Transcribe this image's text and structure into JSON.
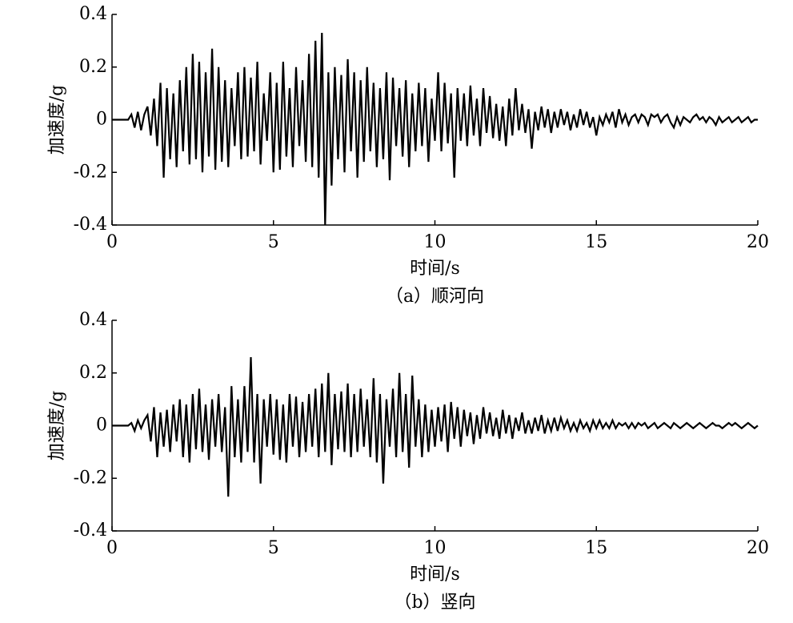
{
  "chart_data": [
    {
      "type": "line",
      "caption": "（a）顺河向",
      "xlabel": "时间/s",
      "ylabel": "加速度/g",
      "color": "#000000",
      "xlim": [
        0,
        20
      ],
      "xticks": [
        0,
        5,
        10,
        15,
        20
      ],
      "ylim": [
        -0.4,
        0.4
      ],
      "yticks": [
        0.4,
        0.2,
        0,
        -0.2,
        -0.4
      ],
      "x": [
        0,
        0.1,
        0.2,
        0.3,
        0.4,
        0.5,
        0.6,
        0.7,
        0.8,
        0.9,
        1,
        1.1,
        1.2,
        1.3,
        1.4,
        1.5,
        1.6,
        1.7,
        1.8,
        1.9,
        2,
        2.1,
        2.2,
        2.3,
        2.4,
        2.5,
        2.6,
        2.7,
        2.8,
        2.9,
        3,
        3.1,
        3.2,
        3.3,
        3.4,
        3.5,
        3.6,
        3.7,
        3.8,
        3.9,
        4,
        4.1,
        4.2,
        4.3,
        4.4,
        4.5,
        4.6,
        4.7,
        4.8,
        4.9,
        5,
        5.1,
        5.2,
        5.3,
        5.4,
        5.5,
        5.6,
        5.7,
        5.8,
        5.9,
        6,
        6.1,
        6.2,
        6.3,
        6.4,
        6.5,
        6.6,
        6.7,
        6.8,
        6.9,
        7,
        7.1,
        7.2,
        7.3,
        7.4,
        7.5,
        7.6,
        7.7,
        7.8,
        7.9,
        8,
        8.1,
        8.2,
        8.3,
        8.4,
        8.5,
        8.6,
        8.7,
        8.8,
        8.9,
        9,
        9.1,
        9.2,
        9.3,
        9.4,
        9.5,
        9.6,
        9.7,
        9.8,
        9.9,
        10,
        10.1,
        10.2,
        10.3,
        10.4,
        10.5,
        10.6,
        10.7,
        10.8,
        10.9,
        11,
        11.1,
        11.2,
        11.3,
        11.4,
        11.5,
        11.6,
        11.7,
        11.8,
        11.9,
        12,
        12.1,
        12.2,
        12.3,
        12.4,
        12.5,
        12.6,
        12.7,
        12.8,
        12.9,
        13,
        13.1,
        13.2,
        13.3,
        13.4,
        13.5,
        13.6,
        13.7,
        13.8,
        13.9,
        14,
        14.1,
        14.2,
        14.3,
        14.4,
        14.5,
        14.6,
        14.7,
        14.8,
        14.9,
        15,
        15.1,
        15.2,
        15.3,
        15.4,
        15.5,
        15.6,
        15.7,
        15.8,
        15.9,
        16,
        16.1,
        16.2,
        16.3,
        16.4,
        16.5,
        16.6,
        16.7,
        16.8,
        16.9,
        17,
        17.1,
        17.2,
        17.3,
        17.4,
        17.5,
        17.6,
        17.7,
        17.8,
        17.9,
        18,
        18.1,
        18.2,
        18.3,
        18.4,
        18.5,
        18.6,
        18.7,
        18.8,
        18.9,
        19,
        19.1,
        19.2,
        19.3,
        19.4,
        19.5,
        19.6,
        19.7,
        19.8,
        19.9,
        20
      ],
      "values": [
        0,
        0,
        0,
        0,
        0,
        0,
        0.02,
        -0.03,
        0.03,
        -0.04,
        0.02,
        0.05,
        -0.06,
        0.08,
        -0.1,
        0.14,
        -0.22,
        0.12,
        -0.15,
        0.1,
        -0.18,
        0.15,
        -0.12,
        0.2,
        -0.17,
        0.25,
        -0.15,
        0.22,
        -0.2,
        0.18,
        -0.14,
        0.27,
        -0.19,
        0.2,
        -0.16,
        0.15,
        -0.18,
        0.12,
        -0.1,
        0.18,
        -0.15,
        0.2,
        -0.14,
        0.16,
        -0.12,
        0.22,
        -0.17,
        0.1,
        -0.08,
        0.18,
        -0.2,
        0.14,
        -0.19,
        0.22,
        -0.14,
        0.12,
        -0.18,
        0.2,
        -0.1,
        0.15,
        -0.16,
        0.25,
        -0.18,
        0.3,
        -0.22,
        0.33,
        -0.4,
        0.18,
        -0.25,
        0.2,
        -0.15,
        0.17,
        -0.2,
        0.23,
        -0.12,
        0.18,
        -0.22,
        0.15,
        -0.16,
        0.2,
        -0.12,
        0.14,
        -0.18,
        0.12,
        -0.15,
        0.18,
        -0.23,
        0.16,
        -0.1,
        0.12,
        -0.14,
        0.15,
        -0.18,
        0.1,
        -0.12,
        0.14,
        -0.1,
        0.12,
        -0.16,
        0.08,
        -0.08,
        0.18,
        -0.12,
        0.14,
        -0.09,
        0.1,
        -0.22,
        0.12,
        -0.08,
        0.1,
        -0.1,
        0.13,
        -0.06,
        0.08,
        -0.1,
        0.12,
        -0.05,
        0.09,
        -0.07,
        0.06,
        -0.08,
        0.05,
        -0.1,
        0.08,
        -0.06,
        0.12,
        -0.04,
        0.06,
        -0.05,
        0.04,
        -0.11,
        0.03,
        -0.04,
        0.05,
        -0.03,
        0.04,
        -0.05,
        0.03,
        -0.03,
        0.04,
        -0.02,
        0.03,
        -0.04,
        0.02,
        -0.03,
        0.04,
        -0.02,
        0.03,
        -0.03,
        0.01,
        -0.06,
        0.01,
        -0.02,
        0.02,
        -0.01,
        0.03,
        -0.03,
        0.04,
        -0.01,
        0.02,
        -0.02,
        0.01,
        0.02,
        -0.01,
        0.02,
        0.01,
        -0.02,
        0.02,
        0.01,
        0.02,
        -0.01,
        0.01,
        0.02,
        -0.01,
        -0.03,
        0.01,
        -0.02,
        0.01,
        0,
        -0.01,
        0.01,
        0.02,
        0,
        0.01,
        -0.01,
        0.01,
        0,
        -0.02,
        0.01,
        -0.01,
        0,
        0.01,
        -0.01,
        0,
        0.01,
        -0.01,
        0,
        0.01,
        -0.01,
        0,
        0
      ]
    },
    {
      "type": "line",
      "caption": "（b）竖向",
      "xlabel": "时间/s",
      "ylabel": "加速度/g",
      "color": "#000000",
      "xlim": [
        0,
        20
      ],
      "xticks": [
        0,
        5,
        10,
        15,
        20
      ],
      "ylim": [
        -0.4,
        0.4
      ],
      "yticks": [
        0.4,
        0.2,
        0,
        -0.2,
        -0.4
      ],
      "x": [
        0,
        0.1,
        0.2,
        0.3,
        0.4,
        0.5,
        0.6,
        0.7,
        0.8,
        0.9,
        1,
        1.1,
        1.2,
        1.3,
        1.4,
        1.5,
        1.6,
        1.7,
        1.8,
        1.9,
        2,
        2.1,
        2.2,
        2.3,
        2.4,
        2.5,
        2.6,
        2.7,
        2.8,
        2.9,
        3,
        3.1,
        3.2,
        3.3,
        3.4,
        3.5,
        3.6,
        3.7,
        3.8,
        3.9,
        4,
        4.1,
        4.2,
        4.3,
        4.4,
        4.5,
        4.6,
        4.7,
        4.8,
        4.9,
        5,
        5.1,
        5.2,
        5.3,
        5.4,
        5.5,
        5.6,
        5.7,
        5.8,
        5.9,
        6,
        6.1,
        6.2,
        6.3,
        6.4,
        6.5,
        6.6,
        6.7,
        6.8,
        6.9,
        7,
        7.1,
        7.2,
        7.3,
        7.4,
        7.5,
        7.6,
        7.7,
        7.8,
        7.9,
        8,
        8.1,
        8.2,
        8.3,
        8.4,
        8.5,
        8.6,
        8.7,
        8.8,
        8.9,
        9,
        9.1,
        9.2,
        9.3,
        9.4,
        9.5,
        9.6,
        9.7,
        9.8,
        9.9,
        10,
        10.1,
        10.2,
        10.3,
        10.4,
        10.5,
        10.6,
        10.7,
        10.8,
        10.9,
        11,
        11.1,
        11.2,
        11.3,
        11.4,
        11.5,
        11.6,
        11.7,
        11.8,
        11.9,
        12,
        12.1,
        12.2,
        12.3,
        12.4,
        12.5,
        12.6,
        12.7,
        12.8,
        12.9,
        13,
        13.1,
        13.2,
        13.3,
        13.4,
        13.5,
        13.6,
        13.7,
        13.8,
        13.9,
        14,
        14.1,
        14.2,
        14.3,
        14.4,
        14.5,
        14.6,
        14.7,
        14.8,
        14.9,
        15,
        15.1,
        15.2,
        15.3,
        15.4,
        15.5,
        15.6,
        15.7,
        15.8,
        15.9,
        16,
        16.1,
        16.2,
        16.3,
        16.4,
        16.5,
        16.6,
        16.7,
        16.8,
        16.9,
        17,
        17.1,
        17.2,
        17.3,
        17.4,
        17.5,
        17.6,
        17.7,
        17.8,
        17.9,
        18,
        18.1,
        18.2,
        18.3,
        18.4,
        18.5,
        18.6,
        18.7,
        18.8,
        18.9,
        19,
        19.1,
        19.2,
        19.3,
        19.4,
        19.5,
        19.6,
        19.7,
        19.8,
        19.9,
        20
      ],
      "values": [
        0,
        0,
        0,
        0,
        0,
        0,
        0.01,
        -0.02,
        0.02,
        -0.01,
        0.02,
        0.04,
        -0.06,
        0.07,
        -0.12,
        0.05,
        -0.08,
        0.06,
        -0.1,
        0.08,
        -0.06,
        0.1,
        -0.12,
        0.08,
        -0.14,
        0.12,
        -0.09,
        0.14,
        -0.1,
        0.08,
        -0.13,
        0.1,
        -0.08,
        0.12,
        -0.1,
        0.07,
        -0.27,
        0.15,
        -0.12,
        0.1,
        -0.14,
        0.15,
        -0.1,
        0.26,
        -0.14,
        0.12,
        -0.22,
        0.1,
        -0.08,
        0.12,
        -0.11,
        0.1,
        -0.13,
        0.08,
        -0.14,
        0.12,
        -0.08,
        0.11,
        -0.12,
        0.09,
        -0.1,
        0.12,
        -0.08,
        0.14,
        -0.12,
        0.16,
        -0.1,
        0.2,
        -0.15,
        0.12,
        -0.09,
        0.13,
        -0.1,
        0.16,
        -0.12,
        0.12,
        -0.1,
        0.14,
        -0.08,
        0.1,
        -0.12,
        0.18,
        -0.14,
        0.12,
        -0.22,
        0.1,
        -0.08,
        0.14,
        -0.12,
        0.2,
        -0.1,
        0.12,
        -0.16,
        0.19,
        -0.08,
        0.1,
        -0.12,
        0.08,
        -0.1,
        0.06,
        -0.08,
        0.07,
        -0.06,
        0.08,
        -0.1,
        0.09,
        -0.05,
        0.07,
        -0.08,
        0.06,
        -0.04,
        0.05,
        -0.07,
        0.04,
        -0.05,
        0.07,
        -0.03,
        0.05,
        -0.04,
        0.03,
        -0.05,
        0.06,
        -0.03,
        0.04,
        -0.05,
        0.03,
        -0.02,
        0.05,
        -0.03,
        0.02,
        -0.03,
        0.03,
        -0.02,
        0.04,
        -0.03,
        0.02,
        -0.02,
        0.03,
        -0.02,
        0.03,
        -0.01,
        0.02,
        -0.02,
        0.01,
        -0.02,
        0.02,
        -0.01,
        0.01,
        -0.02,
        0.02,
        -0.01,
        0.02,
        -0.01,
        0.01,
        -0.01,
        0.02,
        -0.01,
        0.01,
        0,
        0.01,
        -0.01,
        0.01,
        -0.01,
        0.01,
        0,
        0.01,
        -0.01,
        0,
        0.01,
        -0.01,
        0,
        0.01,
        0,
        -0.01,
        0.01,
        0,
        -0.01,
        0,
        0.01,
        0,
        -0.01,
        0,
        0.01,
        0,
        -0.01,
        0,
        0.01,
        0,
        0,
        -0.01,
        0,
        0.01,
        0,
        0.01,
        0,
        -0.01,
        0,
        0.01,
        0,
        -0.01,
        0
      ]
    }
  ]
}
